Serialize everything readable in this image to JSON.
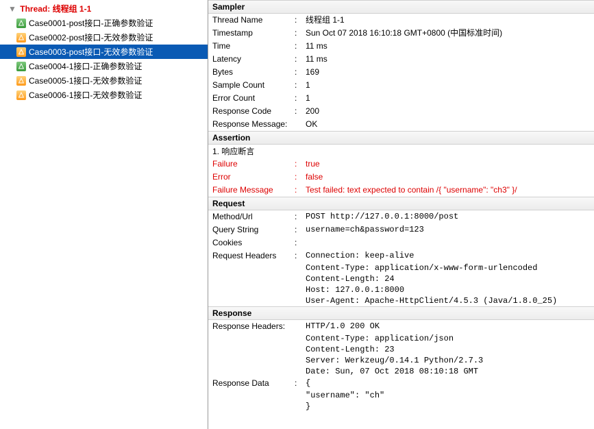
{
  "tree": {
    "header": "Thread: 线程组 1-1",
    "items": [
      {
        "name": "Case0001-post接口-正确参数验证",
        "status": "pass",
        "selected": false
      },
      {
        "name": "Case0002-post接口-无效参数验证",
        "status": "warn",
        "selected": false
      },
      {
        "name": "Case0003-post接口-无效参数验证",
        "status": "warn",
        "selected": true
      },
      {
        "name": "Case0004-1接口-正确参数验证",
        "status": "pass",
        "selected": false
      },
      {
        "name": "Case0005-1接口-无效参数验证",
        "status": "warn",
        "selected": false
      },
      {
        "name": "Case0006-1接口-无效参数验证",
        "status": "warn",
        "selected": false
      }
    ]
  },
  "sampler": {
    "title": "Sampler",
    "thread_name_label": "Thread Name",
    "thread_name": "线程组 1-1",
    "timestamp_label": "Timestamp",
    "timestamp": "Sun Oct 07 2018 16:10:18 GMT+0800 (中国标准时间)",
    "time_label": "Time",
    "time": "11 ms",
    "latency_label": "Latency",
    "latency": "11 ms",
    "bytes_label": "Bytes",
    "bytes": "169",
    "sample_count_label": "Sample Count",
    "sample_count": "1",
    "error_count_label": "Error Count",
    "error_count": "1",
    "response_code_label": "Response Code",
    "response_code": "200",
    "response_message_label": "Response Message:",
    "response_message": "OK"
  },
  "assertion": {
    "title": "Assertion",
    "line1": "1. 响应断言",
    "failure_label": "Failure",
    "failure": "true",
    "error_label": "Error",
    "error": "false",
    "failure_message_label": "Failure Message",
    "failure_message": "Test failed: text expected to contain /{ \"username\": \"ch3\" }/"
  },
  "request": {
    "title": "Request",
    "method_url_label": "Method/Url",
    "method_url": "POST http://127.0.0.1:8000/post",
    "query_string_label": "Query String",
    "query_string": "username=ch&password=123",
    "cookies_label": "Cookies",
    "cookies": "",
    "request_headers_label": "Request Headers",
    "headers": [
      "Connection: keep-alive",
      "Content-Type: application/x-www-form-urlencoded",
      "Content-Length: 24",
      "Host: 127.0.0.1:8000",
      "User-Agent: Apache-HttpClient/4.5.3 (Java/1.8.0_25)"
    ]
  },
  "response": {
    "title": "Response",
    "response_headers_label": "Response Headers:",
    "headers": [
      "HTTP/1.0 200 OK",
      "Content-Type: application/json",
      "Content-Length: 23",
      "Server: Werkzeug/0.14.1 Python/2.7.3",
      "Date: Sun, 07 Oct 2018 08:10:18 GMT"
    ],
    "response_data_label": "Response Data",
    "data": [
      "{",
      "    \"username\": \"ch\"",
      "}"
    ]
  }
}
